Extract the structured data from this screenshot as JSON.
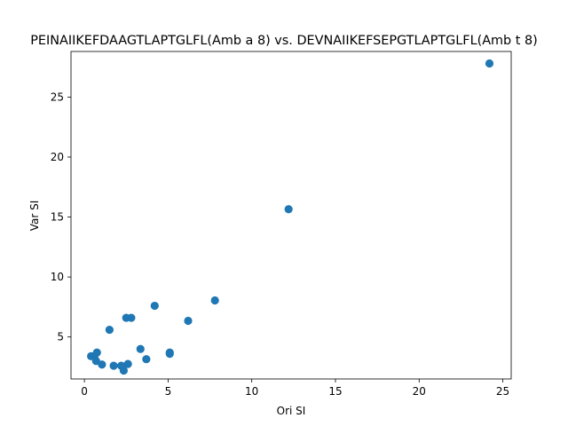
{
  "chart_data": {
    "type": "scatter",
    "title": "PEINAIIKEFDAAGTLAPTGLFL(Amb a 8) vs. DEVNAIIKEFSEPGTLAPTGLFL(Amb t 8)",
    "xlabel": "Ori SI",
    "ylabel": "Var SI",
    "xlim": [
      -0.8,
      25.5
    ],
    "ylim": [
      1.5,
      28.8
    ],
    "xticks": [
      0,
      5,
      10,
      15,
      20,
      25
    ],
    "yticks": [
      5,
      10,
      15,
      20,
      25
    ],
    "grid": false,
    "marker_color": "#1f77b4",
    "points": [
      {
        "x": 0.4,
        "y": 3.4
      },
      {
        "x": 0.6,
        "y": 3.4
      },
      {
        "x": 0.7,
        "y": 3.0
      },
      {
        "x": 0.75,
        "y": 3.7
      },
      {
        "x": 1.05,
        "y": 2.7
      },
      {
        "x": 1.5,
        "y": 5.6
      },
      {
        "x": 1.75,
        "y": 2.6
      },
      {
        "x": 2.2,
        "y": 2.6
      },
      {
        "x": 2.35,
        "y": 2.2
      },
      {
        "x": 2.5,
        "y": 6.6
      },
      {
        "x": 2.6,
        "y": 2.75
      },
      {
        "x": 2.8,
        "y": 6.6
      },
      {
        "x": 3.35,
        "y": 4.0
      },
      {
        "x": 3.7,
        "y": 3.15
      },
      {
        "x": 4.2,
        "y": 7.6
      },
      {
        "x": 5.1,
        "y": 3.7
      },
      {
        "x": 5.1,
        "y": 3.6
      },
      {
        "x": 6.2,
        "y": 6.35
      },
      {
        "x": 7.8,
        "y": 8.05
      },
      {
        "x": 12.2,
        "y": 15.65
      },
      {
        "x": 24.2,
        "y": 27.8
      }
    ]
  }
}
